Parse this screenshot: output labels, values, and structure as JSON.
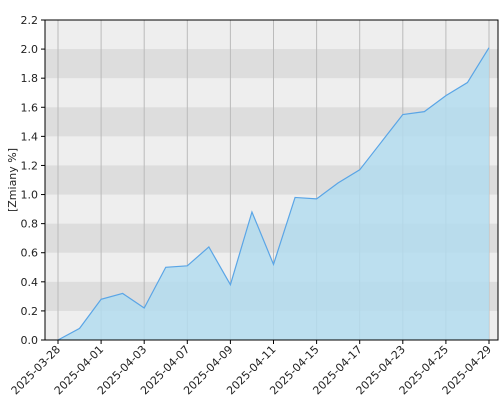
{
  "chart_data": {
    "type": "area",
    "y_label": "[Zmiany %]",
    "categories": [
      "2025-03-28",
      null,
      "2025-04-01",
      null,
      "2025-04-03",
      null,
      "2025-04-07",
      null,
      "2025-04-09",
      null,
      "2025-04-11",
      null,
      "2025-04-15",
      null,
      "2025-04-17",
      null,
      "2025-04-23",
      null,
      "2025-04-25",
      null,
      "2025-04-29"
    ],
    "values": [
      0,
      0.08,
      0.28,
      0.32,
      0.22,
      0.5,
      0.51,
      0.64,
      0.38,
      0.88,
      0.52,
      0.98,
      0.97,
      1.08,
      1.17,
      1.36,
      1.55,
      1.57,
      1.68,
      1.77,
      2.01
    ],
    "color": "#5aa5e6",
    "fill": "#b3dcee",
    "ylim": [
      0,
      2.2
    ],
    "yticks": [
      {
        "value": 0,
        "label": "0.0"
      },
      0.2,
      0.4,
      0.6,
      0.8,
      {
        "value": 1,
        "label": "1.0"
      },
      1.2,
      1.4,
      1.6,
      1.8,
      {
        "value": 2,
        "label": "2.0"
      },
      2.2
    ],
    "grid": true
  }
}
